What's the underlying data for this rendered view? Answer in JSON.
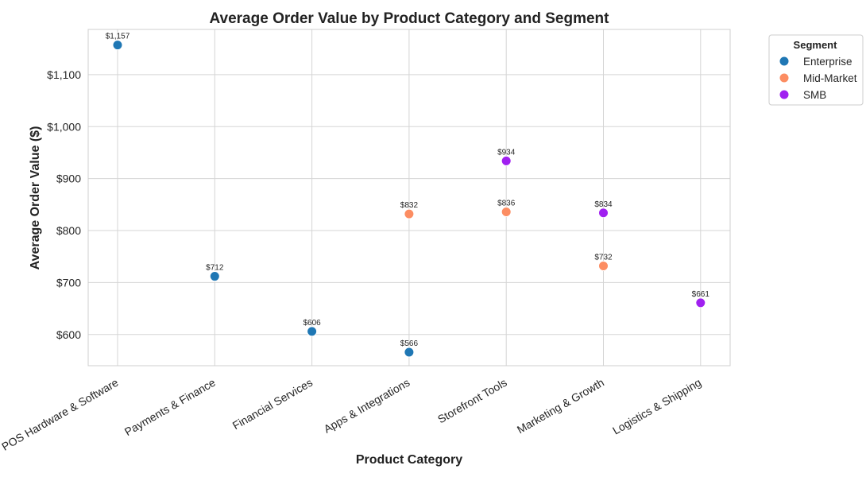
{
  "chart_data": {
    "type": "scatter",
    "title": "Average Order Value by Product Category and Segment",
    "xlabel": "Product Category",
    "ylabel": "Average Order Value ($)",
    "categories": [
      "POS Hardware & Software",
      "Payments & Finance",
      "Financial Services",
      "Apps & Integrations",
      "Storefront Tools",
      "Marketing & Growth",
      "Logistics & Shipping"
    ],
    "ylim": [
      540,
      1187
    ],
    "yticks": [
      600,
      700,
      800,
      900,
      1000,
      1100
    ],
    "ytick_labels": [
      "$600",
      "$700",
      "$800",
      "$900",
      "$1,000",
      "$1,100"
    ],
    "grid": true,
    "legend": {
      "title": "Segment",
      "position": "outside-top-right"
    },
    "series": [
      {
        "name": "Enterprise",
        "color": "#1f77b4",
        "points": [
          {
            "category": "POS Hardware & Software",
            "value": 1157,
            "label": "$1,157"
          },
          {
            "category": "Payments & Finance",
            "value": 712,
            "label": "$712"
          },
          {
            "category": "Financial Services",
            "value": 606,
            "label": "$606"
          },
          {
            "category": "Apps & Integrations",
            "value": 566,
            "label": "$566"
          }
        ]
      },
      {
        "name": "Mid-Market",
        "color": "#fc8d62",
        "points": [
          {
            "category": "Apps & Integrations",
            "value": 832,
            "label": "$832"
          },
          {
            "category": "Storefront Tools",
            "value": 836,
            "label": "$836"
          },
          {
            "category": "Marketing & Growth",
            "value": 732,
            "label": "$732"
          }
        ]
      },
      {
        "name": "SMB",
        "color": "#a020f0",
        "points": [
          {
            "category": "Storefront Tools",
            "value": 934,
            "label": "$934"
          },
          {
            "category": "Marketing & Growth",
            "value": 834,
            "label": "$834"
          },
          {
            "category": "Logistics & Shipping",
            "value": 661,
            "label": "$661"
          }
        ]
      }
    ]
  }
}
